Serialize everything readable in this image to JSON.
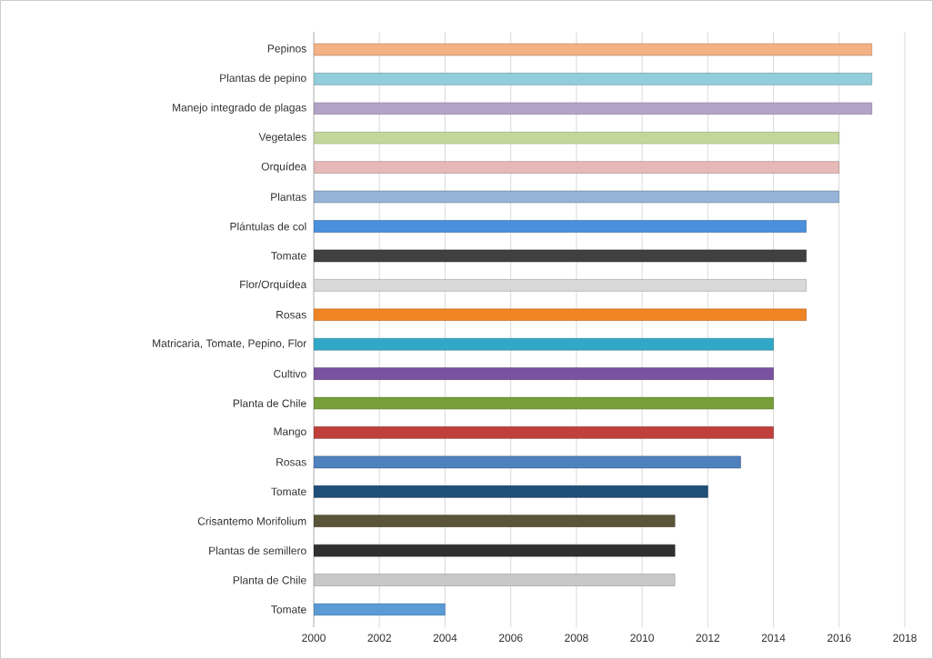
{
  "chart_data": {
    "type": "bar",
    "orientation": "horizontal",
    "categories": [
      "Pepinos",
      "Plantas de pepino",
      "Manejo integrado de plagas",
      "Vegetales",
      "Orquídea",
      "Plantas",
      "Plántulas de col",
      "Tomate",
      "Flor/Orquídea",
      "Rosas",
      "Matricaria, Tomate, Pepino, Flor",
      "Cultivo",
      "Planta de Chile",
      "Mango",
      "Rosas",
      "Tomate",
      "Crisantemo Morifolium",
      "Plantas de semillero",
      "Planta de Chile",
      "Tomate"
    ],
    "values": [
      2017,
      2017,
      2017,
      2016,
      2016,
      2016,
      2015,
      2015,
      2015,
      2015,
      2014,
      2014,
      2014,
      2014,
      2013,
      2012,
      2011,
      2011,
      2011,
      2004
    ],
    "colors": [
      "#f4b183",
      "#92cddc",
      "#b3a2c7",
      "#c3d69b",
      "#e6b9b8",
      "#95b3d7",
      "#4a90dd",
      "#404040",
      "#d9d9d9",
      "#f08424",
      "#31a8c8",
      "#7952a0",
      "#77a03a",
      "#c0403c",
      "#4f81bd",
      "#1f4e79",
      "#5a5538",
      "#303030",
      "#c8c8c8",
      "#5b9bd5"
    ],
    "xlim": [
      2000,
      2018
    ],
    "xticks": [
      2000,
      2002,
      2004,
      2006,
      2008,
      2010,
      2012,
      2014,
      2016,
      2018
    ],
    "grid": "x"
  }
}
